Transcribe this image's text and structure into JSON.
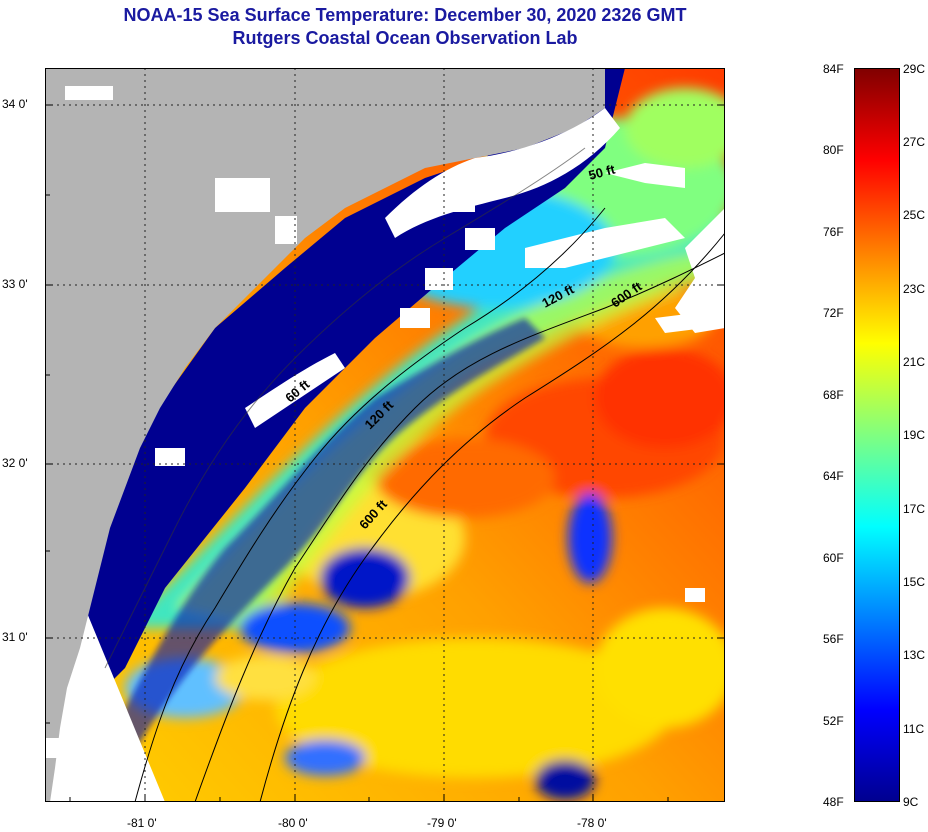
{
  "title": "NOAA-15 Sea Surface Temperature:  December 30, 2020 2326 GMT",
  "subtitle": "Rutgers Coastal Ocean Observation Lab",
  "map": {
    "lat_labels": [
      "34 0'",
      "33 0'",
      "32 0'",
      "31 0'"
    ],
    "lon_labels": [
      "-81 0'",
      "-80 0'",
      "-79 0'",
      "-78 0'"
    ],
    "isobath_labels": [
      "50 ft",
      "120 ft",
      "600 ft",
      "60 ft",
      "120 ft",
      "600 ft"
    ]
  },
  "colorbar": {
    "fahrenheit_labels": [
      "84F",
      "80F",
      "76F",
      "72F",
      "68F",
      "64F",
      "60F",
      "56F",
      "52F",
      "48F"
    ],
    "celsius_labels": [
      "29C",
      "27C",
      "25C",
      "23C",
      "21C",
      "19C",
      "17C",
      "15C",
      "13C",
      "11C",
      "9C"
    ],
    "colors": [
      "#00008f",
      "#0000ff",
      "#0080ff",
      "#00ffff",
      "#80ff80",
      "#ffff00",
      "#ff8000",
      "#ff0000",
      "#800000"
    ]
  },
  "colors": {
    "land": "#b4b4b4",
    "cloud": "#ffffff",
    "title": "#1a1aa0"
  }
}
